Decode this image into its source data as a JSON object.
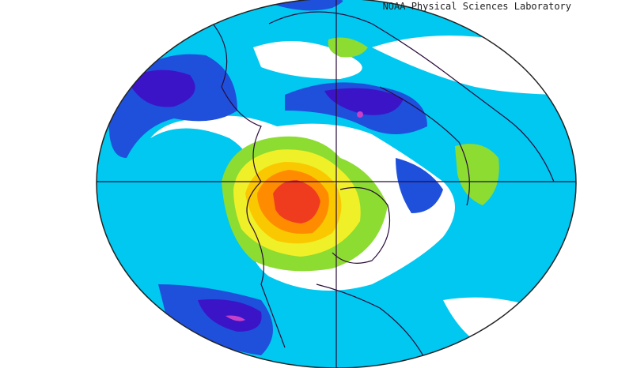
{
  "credit": "NOAA Physical Sciences Laboratory"
}
